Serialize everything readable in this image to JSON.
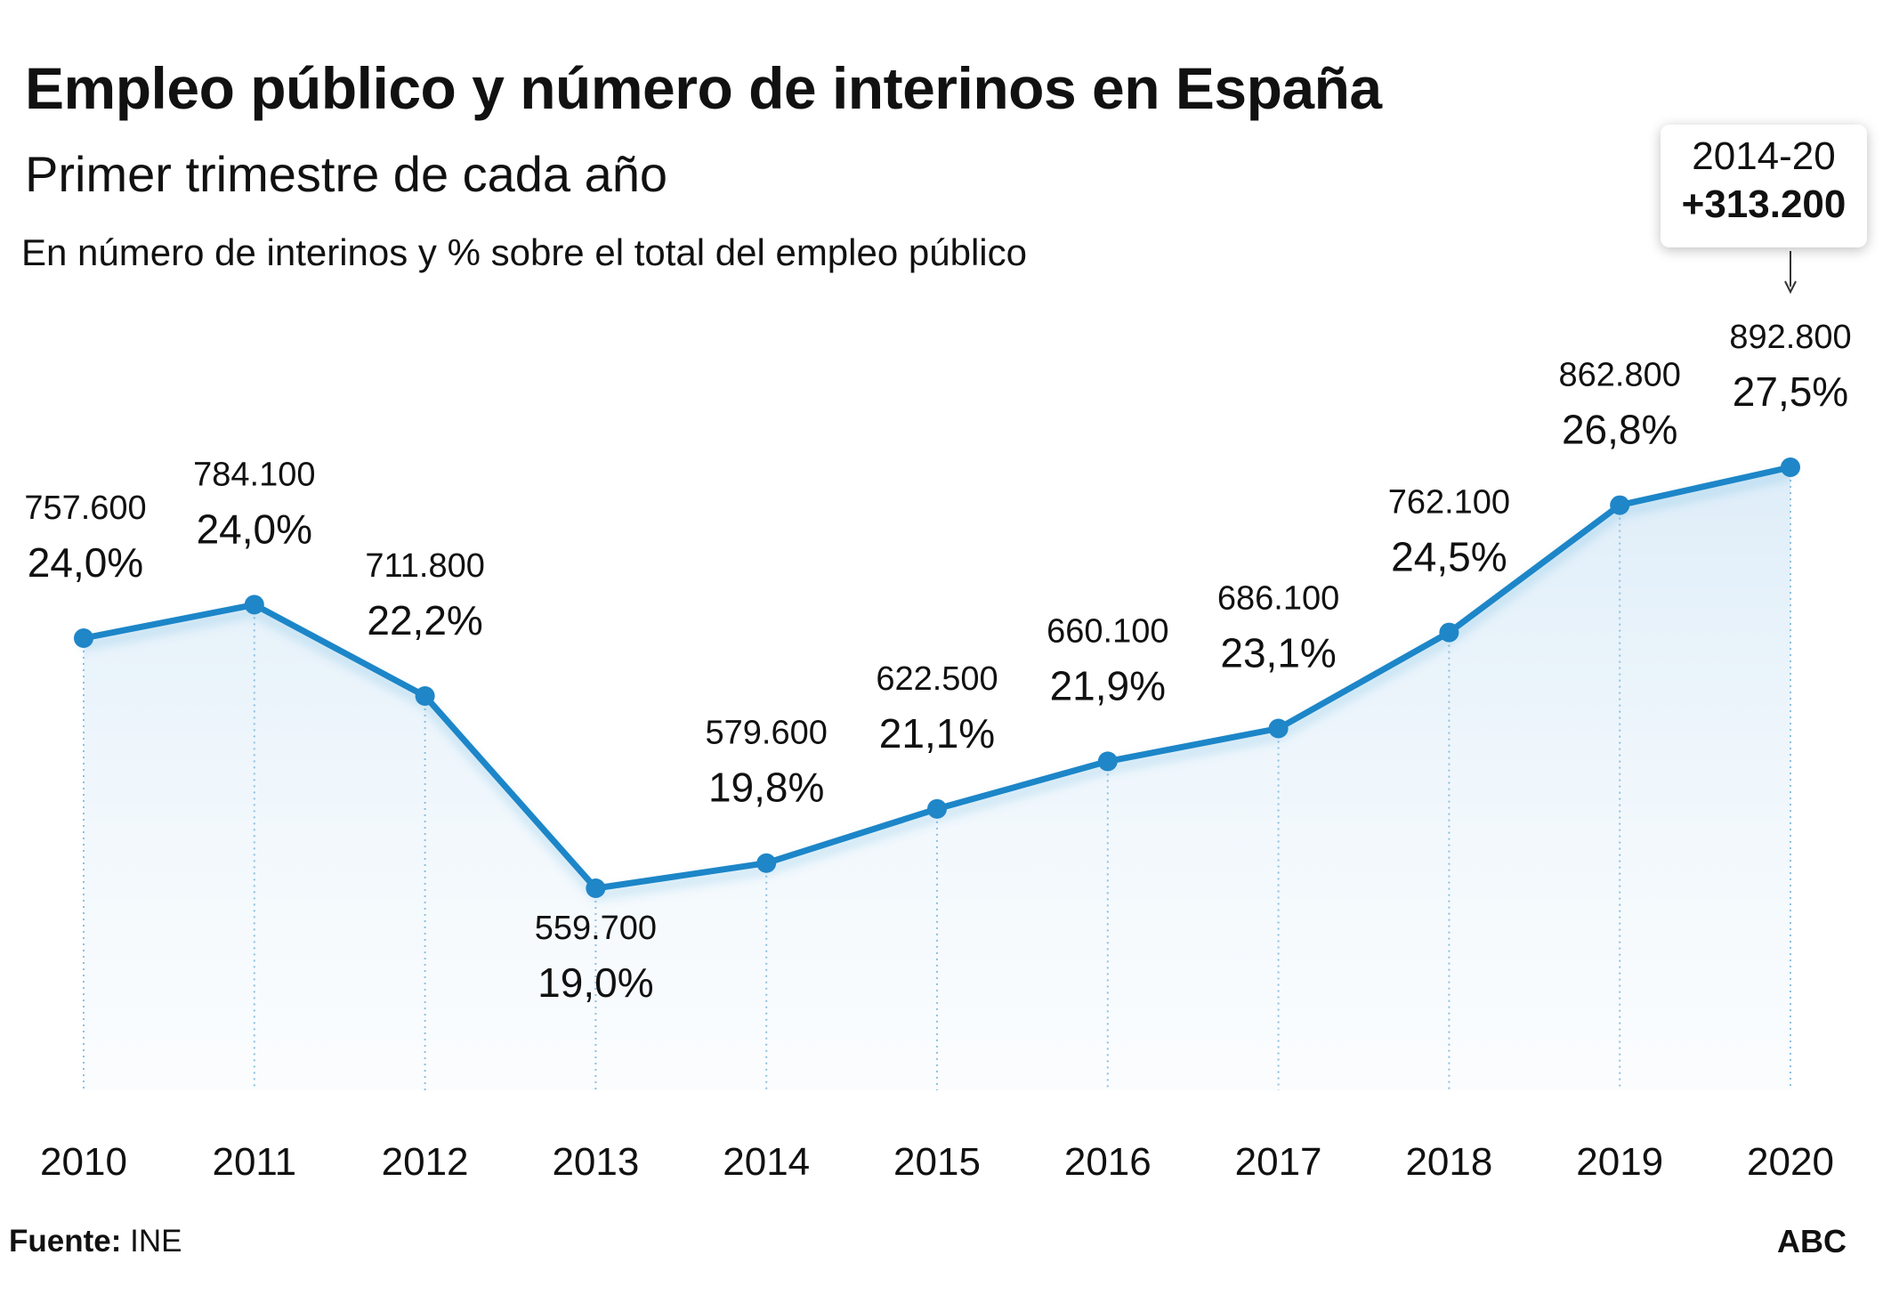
{
  "header": {
    "title": "Empleo público y número de interinos en España",
    "subtitle": "Primer trimestre de cada año",
    "note": "En número de interinos y % sobre el total del empleo público"
  },
  "callout": {
    "period": "2014-20",
    "delta": "+313.200"
  },
  "footer": {
    "source_label": "Fuente:",
    "source_value": "INE",
    "brand": "ABC"
  },
  "colors": {
    "line": "#1f86c8",
    "area": "#e8f3fb",
    "guide": "#8cc0e0"
  },
  "chart_data": {
    "type": "line",
    "categories": [
      "2010",
      "2011",
      "2012",
      "2013",
      "2014",
      "2015",
      "2016",
      "2017",
      "2018",
      "2019",
      "2020"
    ],
    "values": [
      757600,
      784100,
      711800,
      559700,
      579600,
      622500,
      660100,
      686100,
      762100,
      862800,
      892800
    ],
    "count_labels": [
      "757.600",
      "784.100",
      "711.800",
      "559.700",
      "579.600",
      "622.500",
      "660.100",
      "686.100",
      "762.100",
      "862.800",
      "892.800"
    ],
    "pct_labels": [
      "24,0%",
      "24,0%",
      "22,2%",
      "19,0%",
      "19,8%",
      "21,1%",
      "21,9%",
      "23,1%",
      "24,5%",
      "26,8%",
      "27,5%"
    ],
    "grid": false,
    "legend": "none"
  }
}
